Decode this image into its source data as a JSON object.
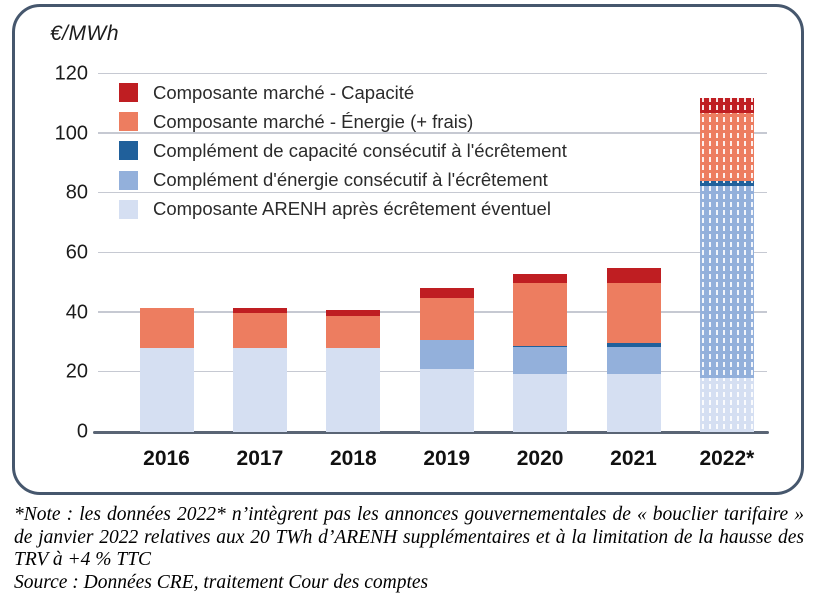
{
  "chart_data": {
    "type": "bar",
    "stacked": true,
    "unit_label": "€/MWh",
    "categories": [
      "2016",
      "2017",
      "2018",
      "2019",
      "2020",
      "2021",
      "2022*"
    ],
    "ylim": [
      0,
      120
    ],
    "yticks": [
      0,
      20,
      40,
      60,
      80,
      100,
      120
    ],
    "grid": true,
    "legend_position": "top-left-inside",
    "hatched_category": "2022*",
    "series": [
      {
        "name": "Composante ARENH après écrêtement éventuel",
        "color": "#d5dff2",
        "values": [
          28,
          28,
          28,
          21,
          19.5,
          19.5,
          18
        ]
      },
      {
        "name": "Complément d'énergie consécutif à l'écrêtement",
        "color": "#93b0db",
        "values": [
          0,
          0,
          0,
          10,
          9,
          9,
          64.5
        ]
      },
      {
        "name": "Complément de capacité consécutif à l'écrêtement",
        "color": "#20609b",
        "values": [
          0,
          0,
          0,
          0,
          0.5,
          1.5,
          1.5
        ]
      },
      {
        "name": "Composante marché - Énergie (+ frais)",
        "color": "#ed7d60",
        "values": [
          13.5,
          11.8,
          11,
          13.8,
          21,
          20,
          23
        ]
      },
      {
        "name": "Composante marché - Capacité",
        "color": "#bf1e22",
        "values": [
          0,
          1.9,
          2,
          3.5,
          3,
          5,
          5
        ]
      }
    ],
    "legend_order_top_to_bottom": [
      4,
      3,
      2,
      1,
      0
    ]
  },
  "footnote": {
    "note": "*Note : les données 2022* n’intègrent pas les annonces gouvernementales de « bouclier tarifaire » de janvier 2022 relatives aux 20 TWh d’ARENH supplémentaires et à la limitation de la hausse des TRV à +4 % TTC",
    "source": "Source : Données CRE, traitement Cour des comptes"
  },
  "colors": {
    "frame": "#46576d",
    "gridline": "#c6c9d2",
    "baseline": "#5a6575",
    "axis_text": "#1c1c1c",
    "hatch_white": "rgba(255,255,255,0.88)"
  }
}
